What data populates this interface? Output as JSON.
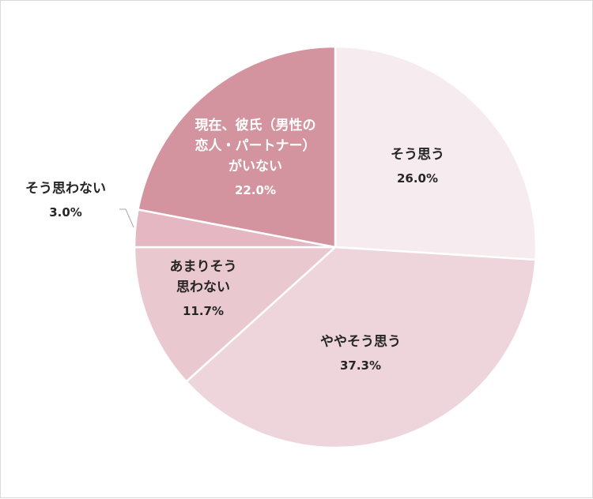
{
  "chart_data": {
    "type": "pie",
    "title": "",
    "slices": [
      {
        "key": "s1",
        "label": "そう思う",
        "lines": [
          "そう思う"
        ],
        "value": 26.0,
        "display": "26.0%",
        "color": "#F6EBEE"
      },
      {
        "key": "s2",
        "label": "ややそう思う",
        "lines": [
          "ややそう思う"
        ],
        "value": 37.3,
        "display": "37.3%",
        "color": "#EDD5DB"
      },
      {
        "key": "s3",
        "label": "あまりそう思わない",
        "lines": [
          "あまりそう",
          "思わない"
        ],
        "value": 11.7,
        "display": "11.7%",
        "color": "#EAC8D0"
      },
      {
        "key": "s4",
        "label": "そう思わない",
        "lines": [
          "そう思わない"
        ],
        "value": 3.0,
        "display": "3.0%",
        "color": "#E4B7C2"
      },
      {
        "key": "s5",
        "label": "現在、彼氏（男性の恋人・パートナー）がいない",
        "lines": [
          "現在、彼氏（男性の",
          "恋人・パートナー）",
          "がいない"
        ],
        "value": 22.0,
        "display": "22.0%",
        "color": "#D3949F"
      }
    ],
    "start_angle_deg": 0,
    "direction": "clockwise",
    "legend": "none",
    "data_labels": "inside"
  }
}
